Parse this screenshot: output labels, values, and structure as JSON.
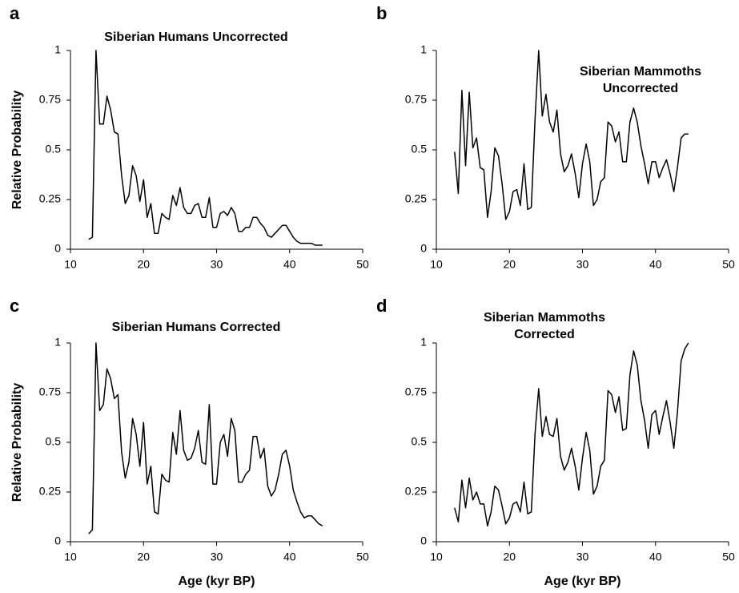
{
  "chart_data": [
    {
      "type": "line",
      "panel": "a",
      "title": "Siberian Humans Uncorrected",
      "y_label": "Relative Probability",
      "color": "#000000",
      "x": [
        12.5,
        13,
        13.5,
        14,
        14.5,
        15,
        15.5,
        16,
        16.5,
        17,
        17.5,
        18,
        18.5,
        19,
        19.5,
        20,
        20.5,
        21,
        21.5,
        22,
        22.5,
        23,
        23.5,
        24,
        24.5,
        25,
        25.5,
        26,
        26.5,
        27,
        27.5,
        28,
        28.5,
        29,
        29.5,
        30,
        30.5,
        31,
        31.5,
        32,
        32.5,
        33,
        33.5,
        34,
        34.5,
        35,
        35.5,
        36,
        36.5,
        37,
        37.5,
        38,
        38.5,
        39,
        39.5,
        40,
        40.5,
        41,
        41.5,
        42,
        42.5,
        43,
        43.5,
        44,
        44.5
      ],
      "values": [
        0.05,
        0.06,
        1.0,
        0.63,
        0.63,
        0.77,
        0.7,
        0.59,
        0.58,
        0.37,
        0.23,
        0.27,
        0.42,
        0.37,
        0.24,
        0.35,
        0.16,
        0.23,
        0.08,
        0.08,
        0.18,
        0.16,
        0.15,
        0.27,
        0.22,
        0.31,
        0.21,
        0.18,
        0.18,
        0.22,
        0.23,
        0.16,
        0.16,
        0.26,
        0.11,
        0.11,
        0.18,
        0.19,
        0.17,
        0.21,
        0.18,
        0.09,
        0.09,
        0.11,
        0.11,
        0.16,
        0.16,
        0.13,
        0.11,
        0.07,
        0.06,
        0.08,
        0.1,
        0.12,
        0.12,
        0.09,
        0.06,
        0.04,
        0.03,
        0.03,
        0.03,
        0.03,
        0.02,
        0.02,
        0.02
      ],
      "xlim": [
        10,
        50
      ],
      "xticks": [
        10,
        20,
        30,
        40,
        50
      ],
      "ylim": [
        0,
        1
      ],
      "yticks": [
        0,
        0.25,
        0.5,
        0.75,
        1
      ]
    },
    {
      "type": "line",
      "panel": "b",
      "title": [
        "Siberian Mammoths",
        "Uncorrected"
      ],
      "color": "#000000",
      "x": [
        12.5,
        13,
        13.5,
        14,
        14.5,
        15,
        15.5,
        16,
        16.5,
        17,
        17.5,
        18,
        18.5,
        19,
        19.5,
        20,
        20.5,
        21,
        21.5,
        22,
        22.5,
        23,
        23.5,
        24,
        24.5,
        25,
        25.5,
        26,
        26.5,
        27,
        27.5,
        28,
        28.5,
        29,
        29.5,
        30,
        30.5,
        31,
        31.5,
        32,
        32.5,
        33,
        33.5,
        34,
        34.5,
        35,
        35.5,
        36,
        36.5,
        37,
        37.5,
        38,
        38.5,
        39,
        39.5,
        40,
        40.5,
        41,
        41.5,
        42,
        42.5,
        43,
        43.5,
        44,
        44.5
      ],
      "values": [
        0.49,
        0.28,
        0.8,
        0.42,
        0.79,
        0.51,
        0.56,
        0.41,
        0.4,
        0.16,
        0.29,
        0.51,
        0.47,
        0.33,
        0.15,
        0.19,
        0.29,
        0.3,
        0.22,
        0.43,
        0.2,
        0.21,
        0.65,
        1.0,
        0.67,
        0.78,
        0.64,
        0.59,
        0.7,
        0.48,
        0.39,
        0.42,
        0.48,
        0.38,
        0.26,
        0.43,
        0.53,
        0.44,
        0.22,
        0.25,
        0.34,
        0.36,
        0.64,
        0.62,
        0.54,
        0.59,
        0.44,
        0.44,
        0.64,
        0.71,
        0.64,
        0.52,
        0.43,
        0.33,
        0.44,
        0.44,
        0.36,
        0.41,
        0.45,
        0.38,
        0.29,
        0.41,
        0.56,
        0.58,
        0.58
      ],
      "xlim": [
        10,
        50
      ],
      "xticks": [
        10,
        20,
        30,
        40,
        50
      ],
      "ylim": [
        0,
        1
      ],
      "yticks": [
        0,
        0.25,
        0.5,
        0.75,
        1
      ]
    },
    {
      "type": "line",
      "panel": "c",
      "title": "Siberian Humans Corrected",
      "y_label": "Relative Probability",
      "x_label": "Age (kyr BP)",
      "color": "#000000",
      "x": [
        12.5,
        13,
        13.5,
        14,
        14.5,
        15,
        15.5,
        16,
        16.5,
        17,
        17.5,
        18,
        18.5,
        19,
        19.5,
        20,
        20.5,
        21,
        21.5,
        22,
        22.5,
        23,
        23.5,
        24,
        24.5,
        25,
        25.5,
        26,
        26.5,
        27,
        27.5,
        28,
        28.5,
        29,
        29.5,
        30,
        30.5,
        31,
        31.5,
        32,
        32.5,
        33,
        33.5,
        34,
        34.5,
        35,
        35.5,
        36,
        36.5,
        37,
        37.5,
        38,
        38.5,
        39,
        39.5,
        40,
        40.5,
        41,
        41.5,
        42,
        42.5,
        43,
        43.5,
        44,
        44.5
      ],
      "values": [
        0.04,
        0.06,
        1.0,
        0.66,
        0.69,
        0.87,
        0.82,
        0.72,
        0.74,
        0.45,
        0.32,
        0.4,
        0.62,
        0.54,
        0.38,
        0.6,
        0.29,
        0.38,
        0.15,
        0.14,
        0.34,
        0.31,
        0.3,
        0.55,
        0.44,
        0.66,
        0.46,
        0.41,
        0.42,
        0.47,
        0.56,
        0.4,
        0.39,
        0.69,
        0.29,
        0.29,
        0.5,
        0.54,
        0.43,
        0.62,
        0.56,
        0.3,
        0.3,
        0.34,
        0.36,
        0.53,
        0.53,
        0.42,
        0.47,
        0.28,
        0.23,
        0.26,
        0.34,
        0.44,
        0.46,
        0.38,
        0.26,
        0.2,
        0.15,
        0.12,
        0.13,
        0.13,
        0.11,
        0.09,
        0.08
      ],
      "xlim": [
        10,
        50
      ],
      "xticks": [
        10,
        20,
        30,
        40,
        50
      ],
      "ylim": [
        0,
        1
      ],
      "yticks": [
        0,
        0.25,
        0.5,
        0.75,
        1
      ]
    },
    {
      "type": "line",
      "panel": "d",
      "title": [
        "Siberian Mammoths",
        "Corrected"
      ],
      "x_label": "Age (kyr BP)",
      "color": "#000000",
      "x": [
        12.5,
        13,
        13.5,
        14,
        14.5,
        15,
        15.5,
        16,
        16.5,
        17,
        17.5,
        18,
        18.5,
        19,
        19.5,
        20,
        20.5,
        21,
        21.5,
        22,
        22.5,
        23,
        23.5,
        24,
        24.5,
        25,
        25.5,
        26,
        26.5,
        27,
        27.5,
        28,
        28.5,
        29,
        29.5,
        30,
        30.5,
        31,
        31.5,
        32,
        32.5,
        33,
        33.5,
        34,
        34.5,
        35,
        35.5,
        36,
        36.5,
        37,
        37.5,
        38,
        38.5,
        39,
        39.5,
        40,
        40.5,
        41,
        41.5,
        42,
        42.5,
        43,
        43.5,
        44,
        44.5
      ],
      "values": [
        0.17,
        0.1,
        0.31,
        0.17,
        0.32,
        0.21,
        0.25,
        0.19,
        0.19,
        0.08,
        0.15,
        0.28,
        0.26,
        0.18,
        0.09,
        0.12,
        0.19,
        0.2,
        0.15,
        0.3,
        0.14,
        0.15,
        0.54,
        0.77,
        0.53,
        0.63,
        0.54,
        0.53,
        0.62,
        0.43,
        0.36,
        0.4,
        0.47,
        0.38,
        0.26,
        0.42,
        0.55,
        0.46,
        0.24,
        0.28,
        0.38,
        0.41,
        0.76,
        0.74,
        0.65,
        0.73,
        0.56,
        0.57,
        0.84,
        0.96,
        0.89,
        0.71,
        0.61,
        0.47,
        0.64,
        0.66,
        0.54,
        0.63,
        0.71,
        0.6,
        0.47,
        0.65,
        0.91,
        0.97,
        1.0
      ],
      "xlim": [
        10,
        50
      ],
      "xticks": [
        10,
        20,
        30,
        40,
        50
      ],
      "ylim": [
        0,
        1
      ],
      "yticks": [
        0,
        0.25,
        0.5,
        0.75,
        1
      ]
    }
  ]
}
